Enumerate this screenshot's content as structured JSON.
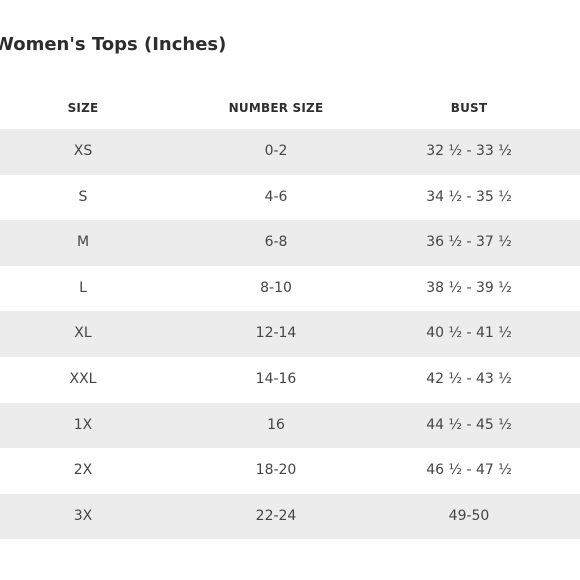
{
  "title": "Women's Tops (Inches)",
  "table": {
    "headers": [
      "SIZE",
      "NUMBER SIZE",
      "BUST"
    ],
    "rows": [
      [
        "XS",
        "0-2",
        "32 ½ - 33 ½"
      ],
      [
        "S",
        "4-6",
        "34 ½ - 35 ½"
      ],
      [
        "M",
        "6-8",
        "36 ½ - 37 ½"
      ],
      [
        "L",
        "8-10",
        "38 ½ - 39 ½"
      ],
      [
        "XL",
        "12-14",
        "40 ½ - 41 ½"
      ],
      [
        "XXL",
        "14-16",
        "42 ½ - 43 ½"
      ],
      [
        "1X",
        "16",
        "44 ½ - 45 ½"
      ],
      [
        "2X",
        "18-20",
        "46 ½ - 47 ½"
      ],
      [
        "3X",
        "22-24",
        "49-50"
      ]
    ]
  },
  "colors": {
    "stripe": "#ececec",
    "text": "#454545"
  }
}
